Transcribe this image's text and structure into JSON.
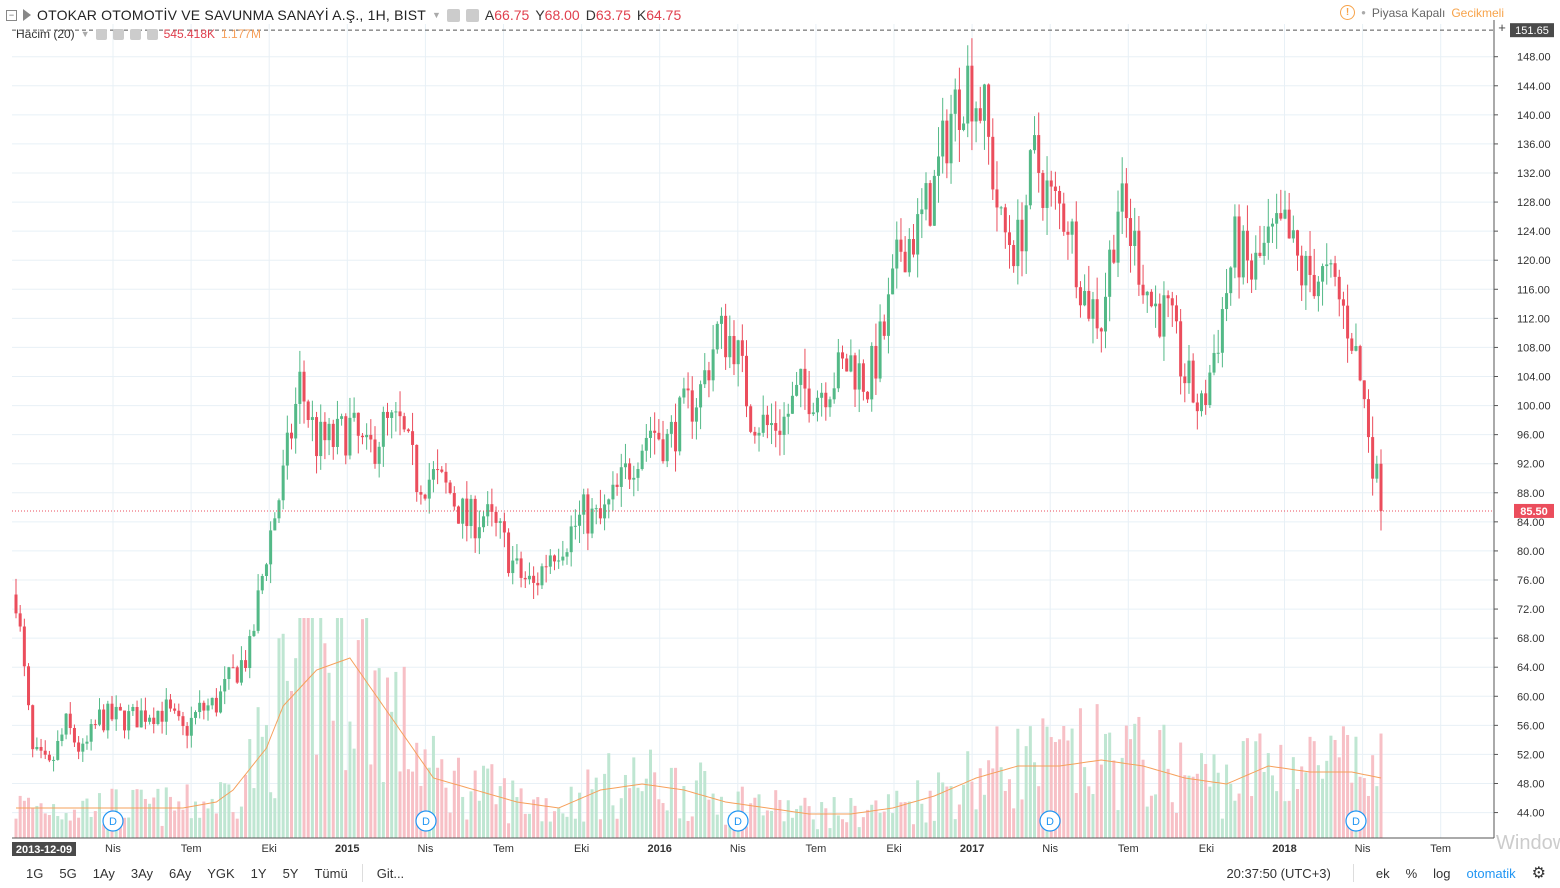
{
  "header": {
    "title": "OTOKAR OTOMOTİV VE SAVUNMA SANAYİ A.Ş., 1H, BIST",
    "ohlc": [
      {
        "label": "A",
        "value": "66.75"
      },
      {
        "label": "Y",
        "value": "68.00"
      },
      {
        "label": "D",
        "value": "63.75"
      },
      {
        "label": "K",
        "value": "64.75"
      }
    ],
    "status_text": "Piyasa Kapalı",
    "delay_text": "Gecikmeli"
  },
  "volume_legend": {
    "label": "Hacim (20)",
    "value1": "545.418K",
    "value2": "1.177M"
  },
  "colors": {
    "up": "#53b987",
    "down": "#eb4d5c",
    "up_vol": "#bfe6d2",
    "down_vol": "#f7c0c6",
    "ma": "#f6a05b",
    "grid": "#e8f0f6",
    "event": "#2196f3"
  },
  "price_axis": {
    "ticks": [
      "148.00",
      "144.00",
      "140.00",
      "136.00",
      "132.00",
      "128.00",
      "124.00",
      "120.00",
      "116.00",
      "112.00",
      "108.00",
      "104.00",
      "100.00",
      "96.00",
      "92.00",
      "88.00",
      "84.00",
      "80.00",
      "76.00",
      "72.00",
      "68.00",
      "64.00",
      "60.00",
      "56.00",
      "52.00",
      "48.00",
      "44.00"
    ],
    "high_label": "151.65",
    "last_label": "85.50"
  },
  "time_axis": {
    "first_label": "2013-12-09",
    "ticks": [
      "Nis",
      "Tem",
      "Eki",
      "2015",
      "Nis",
      "Tem",
      "Eki",
      "2016",
      "Nis",
      "Tem",
      "Eki",
      "2017",
      "Nis",
      "Tem",
      "Eki",
      "2018",
      "Nis",
      "Tem"
    ]
  },
  "event_marker_label": "D",
  "chart_data": {
    "type": "candlestick",
    "interval": "1W",
    "last_price": 85.5,
    "high_line": 151.65,
    "ylim": [
      40.5,
      152.5
    ],
    "price_anchors": [
      [
        0,
        74
      ],
      [
        4,
        52
      ],
      [
        8,
        50
      ],
      [
        12,
        56
      ],
      [
        16,
        52
      ],
      [
        20,
        57
      ],
      [
        24,
        57
      ],
      [
        28,
        57
      ],
      [
        32,
        58
      ],
      [
        36,
        58
      ],
      [
        40,
        55
      ],
      [
        44,
        58
      ],
      [
        48,
        59
      ],
      [
        52,
        63
      ],
      [
        56,
        66
      ],
      [
        60,
        80
      ],
      [
        64,
        90
      ],
      [
        68,
        103
      ],
      [
        72,
        95
      ],
      [
        76,
        95
      ],
      [
        80,
        97
      ],
      [
        84,
        93
      ],
      [
        88,
        97
      ],
      [
        92,
        97
      ],
      [
        96,
        90
      ],
      [
        100,
        90
      ],
      [
        104,
        88
      ],
      [
        108,
        84
      ],
      [
        112,
        85
      ],
      [
        116,
        82
      ],
      [
        120,
        77
      ],
      [
        124,
        75
      ],
      [
        128,
        80
      ],
      [
        132,
        82
      ],
      [
        136,
        85
      ],
      [
        140,
        84
      ],
      [
        144,
        88
      ],
      [
        148,
        93
      ],
      [
        152,
        97
      ],
      [
        156,
        95
      ],
      [
        160,
        99
      ],
      [
        164,
        102
      ],
      [
        168,
        110
      ],
      [
        172,
        109
      ],
      [
        176,
        99
      ],
      [
        180,
        97
      ],
      [
        184,
        98
      ],
      [
        188,
        102
      ],
      [
        192,
        102
      ],
      [
        196,
        104
      ],
      [
        200,
        106
      ],
      [
        204,
        103
      ],
      [
        208,
        110
      ],
      [
        212,
        122
      ],
      [
        216,
        124
      ],
      [
        220,
        130
      ],
      [
        224,
        140
      ],
      [
        228,
        145
      ],
      [
        232,
        140
      ],
      [
        236,
        124
      ],
      [
        240,
        122
      ],
      [
        244,
        134
      ],
      [
        248,
        128
      ],
      [
        252,
        126
      ],
      [
        256,
        115
      ],
      [
        260,
        112
      ],
      [
        264,
        128
      ],
      [
        268,
        122
      ],
      [
        272,
        114
      ],
      [
        276,
        112
      ],
      [
        280,
        104
      ],
      [
        284,
        99
      ],
      [
        288,
        110
      ],
      [
        292,
        122
      ],
      [
        296,
        118
      ],
      [
        300,
        122
      ],
      [
        304,
        124
      ],
      [
        308,
        118
      ],
      [
        312,
        118
      ],
      [
        316,
        116
      ],
      [
        320,
        110
      ],
      [
        324,
        97
      ],
      [
        327,
        85.5
      ]
    ],
    "volume_ma_anchors": [
      [
        0,
        0.05
      ],
      [
        20,
        0.05
      ],
      [
        40,
        0.05
      ],
      [
        48,
        0.06
      ],
      [
        52,
        0.08
      ],
      [
        60,
        0.15
      ],
      [
        64,
        0.22
      ],
      [
        72,
        0.28
      ],
      [
        80,
        0.3
      ],
      [
        90,
        0.2
      ],
      [
        100,
        0.1
      ],
      [
        110,
        0.08
      ],
      [
        120,
        0.06
      ],
      [
        130,
        0.05
      ],
      [
        140,
        0.08
      ],
      [
        150,
        0.09
      ],
      [
        160,
        0.08
      ],
      [
        170,
        0.06
      ],
      [
        180,
        0.05
      ],
      [
        190,
        0.04
      ],
      [
        200,
        0.04
      ],
      [
        210,
        0.05
      ],
      [
        220,
        0.07
      ],
      [
        230,
        0.1
      ],
      [
        240,
        0.12
      ],
      [
        250,
        0.12
      ],
      [
        260,
        0.13
      ],
      [
        270,
        0.12
      ],
      [
        280,
        0.1
      ],
      [
        290,
        0.09
      ],
      [
        300,
        0.12
      ],
      [
        310,
        0.11
      ],
      [
        320,
        0.11
      ],
      [
        327,
        0.1
      ]
    ],
    "bar_count": 328
  },
  "bottom_bar": {
    "ranges": [
      "1G",
      "5G",
      "1Ay",
      "3Ay",
      "6Ay",
      "YGK",
      "1Y",
      "5Y",
      "Tümü"
    ],
    "goto": "Git...",
    "clock": "20:37:50 (UTC+3)",
    "ext": "ek",
    "pct": "%",
    "log": "log",
    "auto": "otomatik"
  },
  "watermark": "Window"
}
